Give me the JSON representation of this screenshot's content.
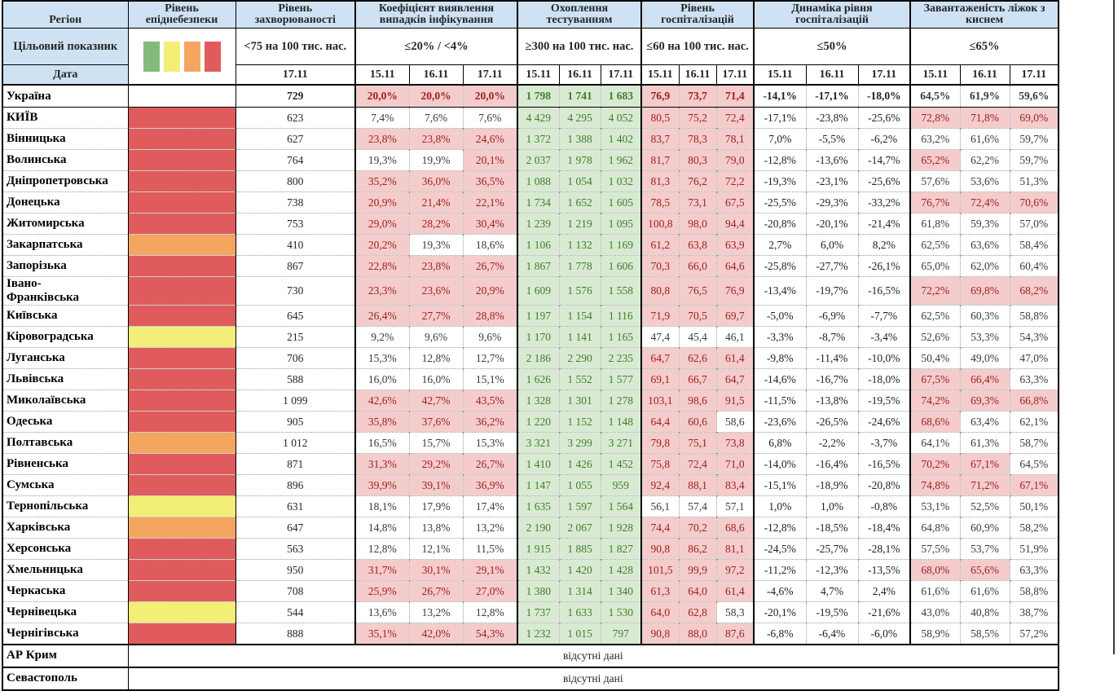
{
  "header": {
    "col_region": "Регіон",
    "col_danger": "Рівень епіднебезпеки",
    "col_incidence": "Рівень захворюваності",
    "col_coef": "Коефіцієнт виявлення випадків інфікування",
    "col_test": "Охоплення тестуванням",
    "col_hosp": "Рівень госпіталізацій",
    "col_dyn": "Динаміка рівня госпіталізацій",
    "col_oxy": "Завантаженість ліжок з киснем",
    "target_label": "Цільовий показник",
    "date_label": "Дата",
    "target_incidence": "<75 на 100 тис. нас.",
    "target_coef": "≤20% / <4%",
    "target_test": "≥300 на 100 тис. нас.",
    "target_hosp": "≤60 на 100 тис. нас.",
    "target_dyn": "≤50%",
    "target_oxy": "≤65%",
    "incidence_date": "17.11",
    "dates": [
      "15.11",
      "16.11",
      "17.11"
    ]
  },
  "colors": {
    "header_blue": "#cfe2f3",
    "pink_bg": "#f4cccc",
    "green_bg": "#d9ead3",
    "dark_red_text": "#a02020",
    "green_text": "#417c2a",
    "danger": {
      "red": "#e05c5c",
      "orange": "#f4a661",
      "yellow": "#f3ee76",
      "none": "#ffffff"
    },
    "legend": [
      "#84bb7d",
      "#f3ee76",
      "#f4a661",
      "#e05c5c"
    ]
  },
  "thresholds": {
    "coef_pct": 20,
    "hosp_per100k": 60,
    "oxy_pct": 65
  },
  "ukraine": {
    "name": "Україна",
    "danger": "none",
    "incidence": "729",
    "coef": [
      "20,0%",
      "20,0%",
      "20,0%"
    ],
    "test": [
      "1 798",
      "1 741",
      "1 683"
    ],
    "hosp": [
      "76,9",
      "73,7",
      "71,4"
    ],
    "dyn": [
      "-14,1%",
      "-17,1%",
      "-18,0%"
    ],
    "oxy": [
      "64,5%",
      "61,9%",
      "59,6%"
    ]
  },
  "regions": [
    {
      "name": "КИЇВ",
      "danger": "red",
      "incidence": "623",
      "coef": [
        "7,4%",
        "7,6%",
        "7,6%"
      ],
      "test": [
        "4 429",
        "4 295",
        "4 052"
      ],
      "hosp": [
        "80,5",
        "75,2",
        "72,4"
      ],
      "dyn": [
        "-17,1%",
        "-23,8%",
        "-25,6%"
      ],
      "oxy": [
        "72,8%",
        "71,8%",
        "69,0%"
      ]
    },
    {
      "name": "Вінницька",
      "danger": "red",
      "incidence": "627",
      "coef": [
        "23,8%",
        "23,8%",
        "24,6%"
      ],
      "test": [
        "1 372",
        "1 388",
        "1 402"
      ],
      "hosp": [
        "83,7",
        "78,3",
        "78,1"
      ],
      "dyn": [
        "7,0%",
        "-5,5%",
        "-6,2%"
      ],
      "oxy": [
        "63,2%",
        "61,6%",
        "59,7%"
      ]
    },
    {
      "name": "Волинська",
      "danger": "red",
      "incidence": "764",
      "coef": [
        "19,3%",
        "19,9%",
        "20,1%"
      ],
      "test": [
        "2 037",
        "1 978",
        "1 962"
      ],
      "hosp": [
        "81,7",
        "80,3",
        "79,0"
      ],
      "dyn": [
        "-12,8%",
        "-13,6%",
        "-14,7%"
      ],
      "oxy": [
        "65,2%",
        "62,2%",
        "59,7%"
      ]
    },
    {
      "name": "Дніпропетровська",
      "danger": "red",
      "incidence": "800",
      "coef": [
        "35,2%",
        "36,0%",
        "36,5%"
      ],
      "test": [
        "1 088",
        "1 054",
        "1 032"
      ],
      "hosp": [
        "81,3",
        "76,2",
        "72,2"
      ],
      "dyn": [
        "-19,3%",
        "-23,1%",
        "-25,6%"
      ],
      "oxy": [
        "57,6%",
        "53,6%",
        "51,3%"
      ]
    },
    {
      "name": "Донецька",
      "danger": "red",
      "incidence": "738",
      "coef": [
        "20,9%",
        "21,4%",
        "22,1%"
      ],
      "test": [
        "1 734",
        "1 652",
        "1 605"
      ],
      "hosp": [
        "78,5",
        "73,1",
        "67,5"
      ],
      "dyn": [
        "-25,5%",
        "-29,3%",
        "-33,2%"
      ],
      "oxy": [
        "76,7%",
        "72,4%",
        "70,6%"
      ]
    },
    {
      "name": "Житомирська",
      "danger": "red",
      "incidence": "753",
      "coef": [
        "29,0%",
        "28,2%",
        "30,4%"
      ],
      "test": [
        "1 239",
        "1 219",
        "1 095"
      ],
      "hosp": [
        "100,8",
        "98,0",
        "94,4"
      ],
      "dyn": [
        "-20,8%",
        "-20,1%",
        "-21,4%"
      ],
      "oxy": [
        "61,8%",
        "59,3%",
        "57,0%"
      ]
    },
    {
      "name": "Закарпатська",
      "danger": "orange",
      "incidence": "410",
      "coef": [
        "20,2%",
        "19,3%",
        "18,6%"
      ],
      "test": [
        "1 106",
        "1 132",
        "1 169"
      ],
      "hosp": [
        "61,2",
        "63,8",
        "63,9"
      ],
      "dyn": [
        "2,7%",
        "6,0%",
        "8,2%"
      ],
      "oxy": [
        "62,5%",
        "63,6%",
        "58,4%"
      ]
    },
    {
      "name": "Запорізька",
      "danger": "red",
      "incidence": "867",
      "coef": [
        "22,8%",
        "23,8%",
        "26,7%"
      ],
      "test": [
        "1 867",
        "1 778",
        "1 606"
      ],
      "hosp": [
        "70,3",
        "66,0",
        "64,6"
      ],
      "dyn": [
        "-25,8%",
        "-27,7%",
        "-26,1%"
      ],
      "oxy": [
        "65,0%",
        "62,0%",
        "60,4%"
      ]
    },
    {
      "name": "Івано-Франківська",
      "danger": "red",
      "incidence": "730",
      "coef": [
        "23,3%",
        "23,6%",
        "20,9%"
      ],
      "test": [
        "1 609",
        "1 576",
        "1 558"
      ],
      "hosp": [
        "80,8",
        "76,5",
        "76,9"
      ],
      "dyn": [
        "-13,4%",
        "-19,7%",
        "-16,5%"
      ],
      "oxy": [
        "72,2%",
        "69,8%",
        "68,2%"
      ]
    },
    {
      "name": "Київська",
      "danger": "red",
      "incidence": "645",
      "coef": [
        "26,4%",
        "27,7%",
        "28,8%"
      ],
      "test": [
        "1 197",
        "1 154",
        "1 116"
      ],
      "hosp": [
        "71,9",
        "70,5",
        "69,7"
      ],
      "dyn": [
        "-5,0%",
        "-6,9%",
        "-7,7%"
      ],
      "oxy": [
        "62,5%",
        "60,3%",
        "58,8%"
      ]
    },
    {
      "name": "Кіровоградська",
      "danger": "yellow",
      "incidence": "215",
      "coef": [
        "9,2%",
        "9,6%",
        "9,6%"
      ],
      "test": [
        "1 170",
        "1 141",
        "1 165"
      ],
      "hosp": [
        "47,4",
        "45,4",
        "46,1"
      ],
      "dyn": [
        "-3,3%",
        "-8,7%",
        "-3,4%"
      ],
      "oxy": [
        "52,6%",
        "53,3%",
        "54,3%"
      ]
    },
    {
      "name": "Луганська",
      "danger": "red",
      "incidence": "706",
      "coef": [
        "15,3%",
        "12,8%",
        "12,7%"
      ],
      "test": [
        "2 186",
        "2 290",
        "2 235"
      ],
      "hosp": [
        "64,7",
        "62,6",
        "61,4"
      ],
      "dyn": [
        "-9,8%",
        "-11,4%",
        "-10,0%"
      ],
      "oxy": [
        "50,4%",
        "49,0%",
        "47,0%"
      ]
    },
    {
      "name": "Львівська",
      "danger": "red",
      "incidence": "588",
      "coef": [
        "16,0%",
        "16,0%",
        "15,1%"
      ],
      "test": [
        "1 626",
        "1 552",
        "1 577"
      ],
      "hosp": [
        "69,1",
        "66,7",
        "64,7"
      ],
      "dyn": [
        "-14,6%",
        "-16,7%",
        "-18,0%"
      ],
      "oxy": [
        "67,5%",
        "66,4%",
        "63,3%"
      ]
    },
    {
      "name": "Миколаївська",
      "danger": "red",
      "incidence": "1 099",
      "coef": [
        "42,6%",
        "42,7%",
        "43,5%"
      ],
      "test": [
        "1 328",
        "1 301",
        "1 278"
      ],
      "hosp": [
        "103,1",
        "98,6",
        "91,5"
      ],
      "dyn": [
        "-11,5%",
        "-13,8%",
        "-19,5%"
      ],
      "oxy": [
        "74,2%",
        "69,3%",
        "66,8%"
      ]
    },
    {
      "name": "Одеська",
      "danger": "red",
      "incidence": "905",
      "coef": [
        "35,8%",
        "37,6%",
        "36,2%"
      ],
      "test": [
        "1 220",
        "1 152",
        "1 148"
      ],
      "hosp": [
        "64,4",
        "60,6",
        "58,6"
      ],
      "dyn": [
        "-23,6%",
        "-26,5%",
        "-24,6%"
      ],
      "oxy": [
        "68,6%",
        "63,4%",
        "62,1%"
      ]
    },
    {
      "name": "Полтавська",
      "danger": "orange",
      "incidence": "1 012",
      "coef": [
        "16,5%",
        "15,7%",
        "15,3%"
      ],
      "test": [
        "3 321",
        "3 299",
        "3 271"
      ],
      "hosp": [
        "79,8",
        "75,1",
        "73,8"
      ],
      "dyn": [
        "6,8%",
        "-2,2%",
        "-3,7%"
      ],
      "oxy": [
        "64,1%",
        "61,3%",
        "58,7%"
      ]
    },
    {
      "name": "Рівненська",
      "danger": "red",
      "incidence": "871",
      "coef": [
        "31,3%",
        "29,2%",
        "26,7%"
      ],
      "test": [
        "1 410",
        "1 426",
        "1 452"
      ],
      "hosp": [
        "75,8",
        "72,4",
        "71,0"
      ],
      "dyn": [
        "-14,0%",
        "-16,4%",
        "-16,5%"
      ],
      "oxy": [
        "70,2%",
        "67,1%",
        "64,5%"
      ]
    },
    {
      "name": "Сумська",
      "danger": "red",
      "incidence": "896",
      "coef": [
        "39,9%",
        "39,1%",
        "36,9%"
      ],
      "test": [
        "1 147",
        "1 055",
        "959"
      ],
      "hosp": [
        "92,4",
        "88,1",
        "83,4"
      ],
      "dyn": [
        "-15,1%",
        "-18,9%",
        "-20,8%"
      ],
      "oxy": [
        "74,8%",
        "71,2%",
        "67,1%"
      ]
    },
    {
      "name": "Тернопільська",
      "danger": "yellow",
      "incidence": "631",
      "coef": [
        "18,1%",
        "17,9%",
        "17,4%"
      ],
      "test": [
        "1 635",
        "1 597",
        "1 564"
      ],
      "hosp": [
        "56,1",
        "57,4",
        "57,1"
      ],
      "dyn": [
        "1,0%",
        "1,0%",
        "-0,8%"
      ],
      "oxy": [
        "53,1%",
        "52,5%",
        "50,1%"
      ]
    },
    {
      "name": "Харківська",
      "danger": "orange",
      "incidence": "647",
      "coef": [
        "14,8%",
        "13,8%",
        "13,2%"
      ],
      "test": [
        "2 190",
        "2 067",
        "1 928"
      ],
      "hosp": [
        "74,4",
        "70,2",
        "68,6"
      ],
      "dyn": [
        "-12,8%",
        "-18,5%",
        "-18,4%"
      ],
      "oxy": [
        "64,8%",
        "60,9%",
        "58,2%"
      ]
    },
    {
      "name": "Херсонська",
      "danger": "red",
      "incidence": "563",
      "coef": [
        "12,8%",
        "12,1%",
        "11,5%"
      ],
      "test": [
        "1 915",
        "1 885",
        "1 827"
      ],
      "hosp": [
        "90,8",
        "86,2",
        "81,1"
      ],
      "dyn": [
        "-24,5%",
        "-25,7%",
        "-28,1%"
      ],
      "oxy": [
        "57,5%",
        "53,7%",
        "51,9%"
      ]
    },
    {
      "name": "Хмельницька",
      "danger": "red",
      "incidence": "950",
      "coef": [
        "31,7%",
        "30,1%",
        "29,1%"
      ],
      "test": [
        "1 432",
        "1 420",
        "1 428"
      ],
      "hosp": [
        "101,5",
        "99,9",
        "97,2"
      ],
      "dyn": [
        "-11,2%",
        "-12,3%",
        "-13,5%"
      ],
      "oxy": [
        "68,0%",
        "65,6%",
        "63,3%"
      ]
    },
    {
      "name": "Черкаська",
      "danger": "red",
      "incidence": "708",
      "coef": [
        "25,9%",
        "26,7%",
        "27,0%"
      ],
      "test": [
        "1 380",
        "1 314",
        "1 340"
      ],
      "hosp": [
        "61,3",
        "64,0",
        "61,4"
      ],
      "dyn": [
        "-4,6%",
        "4,7%",
        "2,4%"
      ],
      "oxy": [
        "61,6%",
        "61,6%",
        "58,8%"
      ]
    },
    {
      "name": "Чернівецька",
      "danger": "yellow",
      "incidence": "544",
      "coef": [
        "13,6%",
        "13,2%",
        "12,8%"
      ],
      "test": [
        "1 737",
        "1 633",
        "1 530"
      ],
      "hosp": [
        "64,0",
        "62,8",
        "58,3"
      ],
      "dyn": [
        "-20,1%",
        "-19,5%",
        "-21,6%"
      ],
      "oxy": [
        "43,0%",
        "40,8%",
        "38,7%"
      ]
    },
    {
      "name": "Чернігівська",
      "danger": "red",
      "incidence": "888",
      "coef": [
        "35,1%",
        "42,0%",
        "54,3%"
      ],
      "test": [
        "1 232",
        "1 015",
        "797"
      ],
      "hosp": [
        "90,8",
        "88,0",
        "87,6"
      ],
      "dyn": [
        "-6,8%",
        "-6,4%",
        "-6,0%"
      ],
      "oxy": [
        "58,9%",
        "58,5%",
        "57,2%"
      ]
    }
  ],
  "no_data_rows": [
    {
      "name": "АР Крим",
      "text": "відсутні дані"
    },
    {
      "name": "Севастополь",
      "text": "відсутні дані"
    }
  ]
}
